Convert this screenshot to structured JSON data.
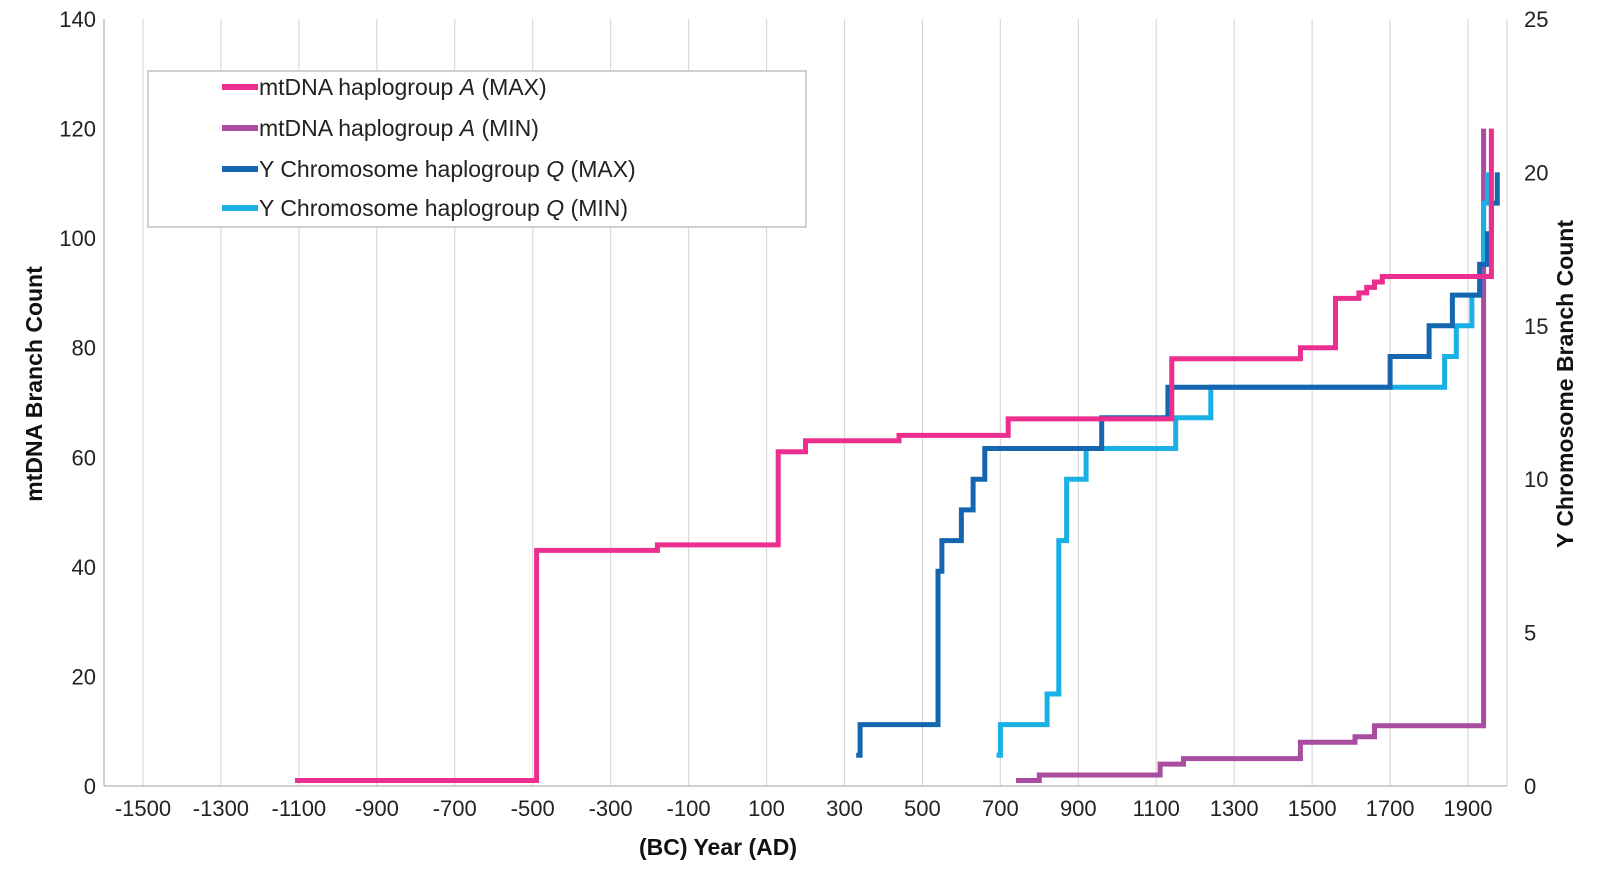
{
  "chart_data": {
    "type": "line",
    "step": true,
    "xlabel": "(BC) Year (AD)",
    "ylabel": "mtDNA Branch Count",
    "y2label": "Y Chromosome Branch Count",
    "xlim": [
      -1600,
      2000
    ],
    "xticks": [
      -1500,
      -1300,
      -1100,
      -900,
      -700,
      -500,
      -300,
      -100,
      100,
      300,
      500,
      700,
      900,
      1100,
      1300,
      1500,
      1700,
      1900
    ],
    "ylim": [
      0,
      140
    ],
    "yticks": [
      0,
      20,
      40,
      60,
      80,
      100,
      120,
      140
    ],
    "y2lim": [
      0,
      25
    ],
    "y2ticks": [
      0,
      5,
      10,
      15,
      20,
      25
    ],
    "grid": "vertical",
    "legend_position": "top-left",
    "series": [
      {
        "name": "mtDNA haplogroup A (MAX)",
        "name_parts": [
          "mtDNA haplogroup ",
          "A",
          " (MAX)"
        ],
        "axis": "left",
        "color": "#ec2f8e",
        "points": [
          [
            -1110,
            1
          ],
          [
            -490,
            1
          ],
          [
            -490,
            43
          ],
          [
            -180,
            43
          ],
          [
            -180,
            44
          ],
          [
            130,
            44
          ],
          [
            130,
            61
          ],
          [
            200,
            61
          ],
          [
            200,
            63
          ],
          [
            440,
            63
          ],
          [
            440,
            64
          ],
          [
            720,
            64
          ],
          [
            720,
            67
          ],
          [
            1140,
            67
          ],
          [
            1140,
            78
          ],
          [
            1470,
            78
          ],
          [
            1470,
            80
          ],
          [
            1560,
            80
          ],
          [
            1560,
            89
          ],
          [
            1620,
            89
          ],
          [
            1620,
            90
          ],
          [
            1640,
            90
          ],
          [
            1640,
            91
          ],
          [
            1660,
            91
          ],
          [
            1660,
            92
          ],
          [
            1680,
            92
          ],
          [
            1680,
            93
          ],
          [
            1960,
            93
          ],
          [
            1960,
            120
          ]
        ]
      },
      {
        "name": "mtDNA haplogroup A (MIN)",
        "name_parts": [
          "mtDNA haplogroup ",
          "A",
          " (MIN)"
        ],
        "axis": "left",
        "color": "#a84d9f",
        "points": [
          [
            740,
            1
          ],
          [
            800,
            1
          ],
          [
            800,
            2
          ],
          [
            1110,
            2
          ],
          [
            1110,
            4
          ],
          [
            1170,
            4
          ],
          [
            1170,
            5
          ],
          [
            1470,
            5
          ],
          [
            1470,
            8
          ],
          [
            1610,
            8
          ],
          [
            1610,
            9
          ],
          [
            1660,
            9
          ],
          [
            1660,
            11
          ],
          [
            1940,
            11
          ],
          [
            1940,
            120
          ]
        ]
      },
      {
        "name": "Y Chromosome haplogroup Q (MAX)",
        "name_parts": [
          "Y Chromosome haplogroup ",
          "Q",
          " (MAX)"
        ],
        "axis": "right",
        "color": "#1466b0",
        "points": [
          [
            330,
            1
          ],
          [
            340,
            1
          ],
          [
            340,
            2
          ],
          [
            540,
            2
          ],
          [
            540,
            7
          ],
          [
            550,
            7
          ],
          [
            550,
            8
          ],
          [
            600,
            8
          ],
          [
            600,
            9
          ],
          [
            630,
            9
          ],
          [
            630,
            10
          ],
          [
            660,
            10
          ],
          [
            660,
            11
          ],
          [
            960,
            11
          ],
          [
            960,
            12
          ],
          [
            1130,
            12
          ],
          [
            1130,
            13
          ],
          [
            1700,
            13
          ],
          [
            1700,
            14
          ],
          [
            1800,
            14
          ],
          [
            1800,
            15
          ],
          [
            1860,
            15
          ],
          [
            1860,
            16
          ],
          [
            1930,
            16
          ],
          [
            1930,
            17
          ],
          [
            1950,
            17
          ],
          [
            1950,
            18
          ],
          [
            1960,
            18
          ],
          [
            1960,
            19
          ],
          [
            1975,
            19
          ],
          [
            1975,
            20
          ]
        ]
      },
      {
        "name": "Y Chromosome haplogroup Q (MIN)",
        "name_parts": [
          "Y Chromosome haplogroup ",
          "Q",
          " (MIN)"
        ],
        "axis": "right",
        "color": "#19b0e6",
        "points": [
          [
            690,
            1
          ],
          [
            700,
            1
          ],
          [
            700,
            2
          ],
          [
            820,
            2
          ],
          [
            820,
            3
          ],
          [
            850,
            3
          ],
          [
            850,
            8
          ],
          [
            870,
            8
          ],
          [
            870,
            10
          ],
          [
            920,
            10
          ],
          [
            920,
            11
          ],
          [
            1150,
            11
          ],
          [
            1150,
            12
          ],
          [
            1240,
            12
          ],
          [
            1240,
            13
          ],
          [
            1840,
            13
          ],
          [
            1840,
            14
          ],
          [
            1870,
            14
          ],
          [
            1870,
            15
          ],
          [
            1910,
            15
          ],
          [
            1910,
            16
          ],
          [
            1930,
            16
          ],
          [
            1930,
            17
          ],
          [
            1940,
            17
          ],
          [
            1940,
            19
          ],
          [
            1950,
            19
          ],
          [
            1950,
            20
          ]
        ]
      }
    ]
  }
}
